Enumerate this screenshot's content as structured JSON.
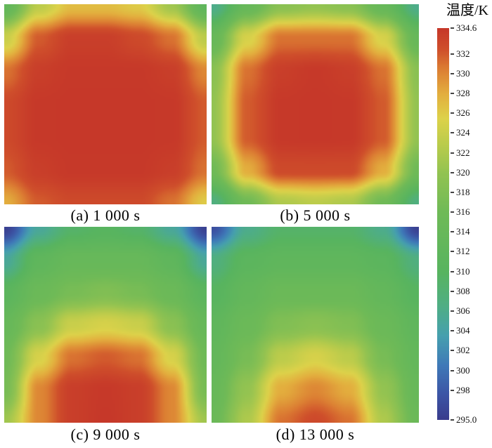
{
  "figure": {
    "description": "Temperature contour plots at four times with shared colorbar"
  },
  "chart_data": {
    "type": "heatmap",
    "title": "",
    "panels": [
      {
        "label": "(a) 1 000 s",
        "time_s": 1000,
        "grid": [
          [
            313,
            323,
            327,
            327,
            326,
            321,
            312
          ],
          [
            324,
            332,
            334,
            334,
            333,
            331,
            323
          ],
          [
            331,
            334,
            334.5,
            334.5,
            334.5,
            334,
            330
          ],
          [
            333,
            334.5,
            334.6,
            334.6,
            334.6,
            334.5,
            332
          ],
          [
            333,
            334.5,
            334.6,
            334.6,
            334.6,
            334.5,
            332
          ],
          [
            332,
            334,
            334.5,
            334.5,
            334.5,
            334,
            331
          ],
          [
            328,
            332,
            333,
            333,
            333,
            331,
            326
          ]
        ]
      },
      {
        "label": "(b) 5 000 s",
        "time_s": 5000,
        "grid": [
          [
            306,
            314,
            319,
            320,
            319,
            314,
            306
          ],
          [
            314,
            325,
            331,
            331,
            331,
            325,
            314
          ],
          [
            319,
            331,
            334,
            334.5,
            334,
            331,
            319
          ],
          [
            320,
            332,
            334.5,
            334.6,
            334.5,
            332,
            320
          ],
          [
            320,
            332,
            334.5,
            334.6,
            334.5,
            332,
            320
          ],
          [
            316,
            328,
            333,
            333,
            333,
            328,
            316
          ],
          [
            307,
            316,
            322,
            323,
            322,
            316,
            307
          ]
        ]
      },
      {
        "label": "(c) 9 000 s",
        "time_s": 9000,
        "grid": [
          [
            295.5,
            305,
            309,
            310,
            309,
            305,
            295.5
          ],
          [
            305,
            312,
            314,
            314,
            314,
            312,
            305
          ],
          [
            311,
            315,
            317,
            318,
            317,
            315,
            311
          ],
          [
            314,
            319,
            324,
            325,
            324,
            319,
            314
          ],
          [
            316,
            325,
            331,
            332,
            331,
            325,
            316
          ],
          [
            317,
            330,
            334,
            334.5,
            334,
            330,
            317
          ],
          [
            321,
            330,
            334,
            334.6,
            334,
            330,
            321
          ]
        ]
      },
      {
        "label": "(d) 13 000 s",
        "time_s": 13000,
        "grid": [
          [
            297,
            306,
            309,
            309,
            309,
            306,
            295.5
          ],
          [
            307,
            311,
            312,
            312,
            312,
            311,
            307
          ],
          [
            310,
            313,
            315,
            315,
            315,
            313,
            310
          ],
          [
            312,
            315,
            318,
            319,
            318,
            315,
            312
          ],
          [
            313,
            317,
            323,
            325,
            323,
            317,
            313
          ],
          [
            314,
            320,
            328,
            330,
            328,
            320,
            314
          ],
          [
            315,
            322,
            331,
            333,
            331,
            322,
            315
          ]
        ]
      }
    ],
    "colorbar": {
      "title": "温度/K",
      "unit": "K",
      "min": 295.0,
      "max": 334.6,
      "ticks": [
        "334.6",
        "332",
        "330",
        "328",
        "326",
        "324",
        "322",
        "320",
        "318",
        "316",
        "314",
        "312",
        "310",
        "308",
        "306",
        "304",
        "302",
        "300",
        "298",
        "295.0"
      ],
      "colormap": [
        [
          295.0,
          "#3a3d8d"
        ],
        [
          297.5,
          "#3c55a5"
        ],
        [
          300.5,
          "#3f7ab8"
        ],
        [
          303.5,
          "#46a0ae"
        ],
        [
          306.5,
          "#4fae85"
        ],
        [
          310.0,
          "#58b45f"
        ],
        [
          316.0,
          "#6fba57"
        ],
        [
          320.0,
          "#93c351"
        ],
        [
          323.0,
          "#bccc4b"
        ],
        [
          325.5,
          "#ddd24a"
        ],
        [
          328.0,
          "#e3ae3e"
        ],
        [
          330.5,
          "#dc7e33"
        ],
        [
          332.5,
          "#cf4f2b"
        ],
        [
          334.6,
          "#c63829"
        ]
      ]
    }
  }
}
